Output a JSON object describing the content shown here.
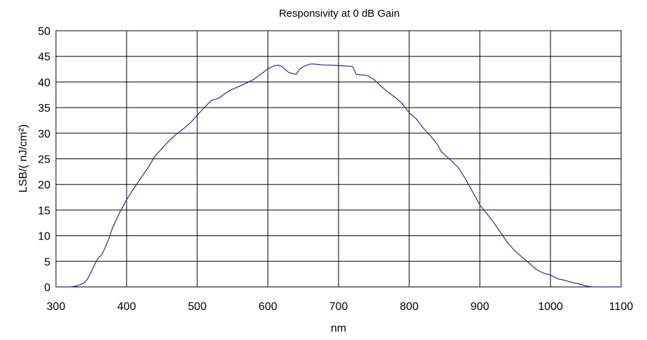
{
  "chart_data": {
    "type": "line",
    "title": "Responsivity at 0 dB Gain",
    "xlabel": "nm",
    "ylabel": "LSB/( nJ/cm²)",
    "xlim": [
      300,
      1100
    ],
    "ylim": [
      0,
      50
    ],
    "xticks": [
      300,
      400,
      500,
      600,
      700,
      800,
      900,
      1000,
      1100
    ],
    "yticks": [
      0,
      5,
      10,
      15,
      20,
      25,
      30,
      35,
      40,
      45,
      50
    ],
    "grid": true,
    "line_color": "#2b2b8f",
    "series": [
      {
        "x": [
          300,
          320,
          330,
          340,
          345,
          350,
          355,
          360,
          365,
          370,
          375,
          380,
          390,
          400,
          410,
          420,
          430,
          440,
          450,
          460,
          470,
          480,
          490,
          500,
          510,
          520,
          530,
          540,
          550,
          560,
          570,
          580,
          590,
          600,
          610,
          615,
          620,
          625,
          630,
          640,
          645,
          650,
          660,
          665,
          670,
          680,
          690,
          700,
          710,
          720,
          725,
          730,
          740,
          750,
          760,
          770,
          780,
          790,
          800,
          810,
          820,
          830,
          840,
          845,
          850,
          860,
          870,
          880,
          890,
          900,
          910,
          920,
          930,
          940,
          950,
          960,
          970,
          980,
          990,
          1000,
          1010,
          1020,
          1030,
          1040,
          1050,
          1060,
          1070,
          1080,
          1090,
          1100
        ],
        "y": [
          0,
          0,
          0.2,
          0.8,
          1.6,
          3.0,
          4.5,
          5.7,
          6.3,
          7.8,
          9.5,
          11.5,
          14.5,
          17.0,
          19.2,
          21.2,
          23.2,
          25.5,
          27.0,
          28.5,
          29.8,
          30.8,
          32.0,
          33.5,
          35.0,
          36.4,
          36.8,
          37.8,
          38.6,
          39.2,
          39.8,
          40.5,
          41.5,
          42.6,
          43.2,
          43.3,
          43.0,
          42.4,
          41.8,
          41.5,
          42.5,
          43.0,
          43.5,
          43.5,
          43.4,
          43.3,
          43.3,
          43.2,
          43.1,
          43.0,
          41.5,
          41.4,
          41.3,
          40.5,
          39.2,
          38.0,
          37.0,
          35.8,
          34.0,
          32.8,
          31.0,
          29.5,
          27.8,
          26.5,
          25.8,
          24.6,
          23.2,
          21.0,
          18.5,
          16.0,
          14.3,
          12.5,
          10.5,
          8.5,
          7.0,
          5.8,
          4.6,
          3.4,
          2.7,
          2.3,
          1.6,
          1.3,
          0.9,
          0.6,
          0.2,
          0,
          0,
          0,
          0,
          0
        ]
      }
    ]
  }
}
